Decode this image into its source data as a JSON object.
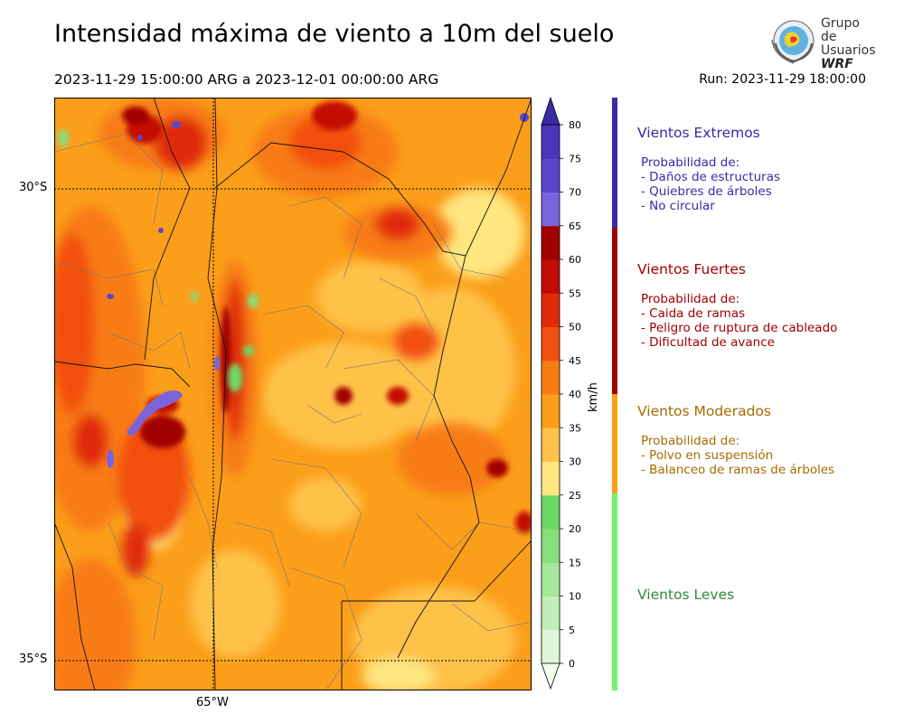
{
  "header": {
    "title": "Intensidad máxima de viento a 10m del suelo",
    "period": "2023-11-29 15:00:00 ARG  a  2023-12-01 00:00:00 ARG",
    "run": "Run: 2023-11-29 18:00:00"
  },
  "logo": {
    "line1": "Grupo de",
    "line2": "Usuarios",
    "line3": "WRF"
  },
  "map": {
    "lat_labels": [
      "30°S",
      "35°S"
    ],
    "lon_labels": [
      "65°W"
    ]
  },
  "colorbar": {
    "unit": "km/h",
    "ticks": [
      "0",
      "5",
      "10",
      "15",
      "20",
      "25",
      "30",
      "35",
      "40",
      "45",
      "50",
      "55",
      "60",
      "65",
      "70",
      "75",
      "80"
    ],
    "colors": [
      "#f5fff0",
      "#dff7d8",
      "#c2efb8",
      "#a5e79a",
      "#86de7d",
      "#6fd767",
      "#ffe680",
      "#ffc24a",
      "#fb9e1a",
      "#f87c13",
      "#f25010",
      "#e02a0a",
      "#c30b06",
      "#a10000",
      "#7a64dc",
      "#5a46cc",
      "#4a35bb",
      "#3a2aa6"
    ]
  },
  "categories": [
    {
      "title": "Vientos Extremos",
      "color": "#3a2aa6",
      "lines": [
        "Probabilidad de:",
        "- Daños de estructuras",
        "- Quiebres de árboles",
        "- No circular"
      ]
    },
    {
      "title": "Vientos Fuertes",
      "color": "#a10000",
      "lines": [
        "Probabilidad de:",
        "- Caida de ramas",
        "- Peligro de ruptura de cableado",
        "- Dificultad de avance"
      ]
    },
    {
      "title": "Vientos Moderados",
      "color": "#a86a00",
      "bar_color": "#fb9e1a",
      "lines": [
        "Probabilidad de:",
        "- Polvo en suspensión",
        "- Balanceo de ramas de árboles"
      ]
    },
    {
      "title": "Vientos Leves",
      "color": "#2e8b3a",
      "bar_color": "#72f06e",
      "lines": []
    }
  ]
}
